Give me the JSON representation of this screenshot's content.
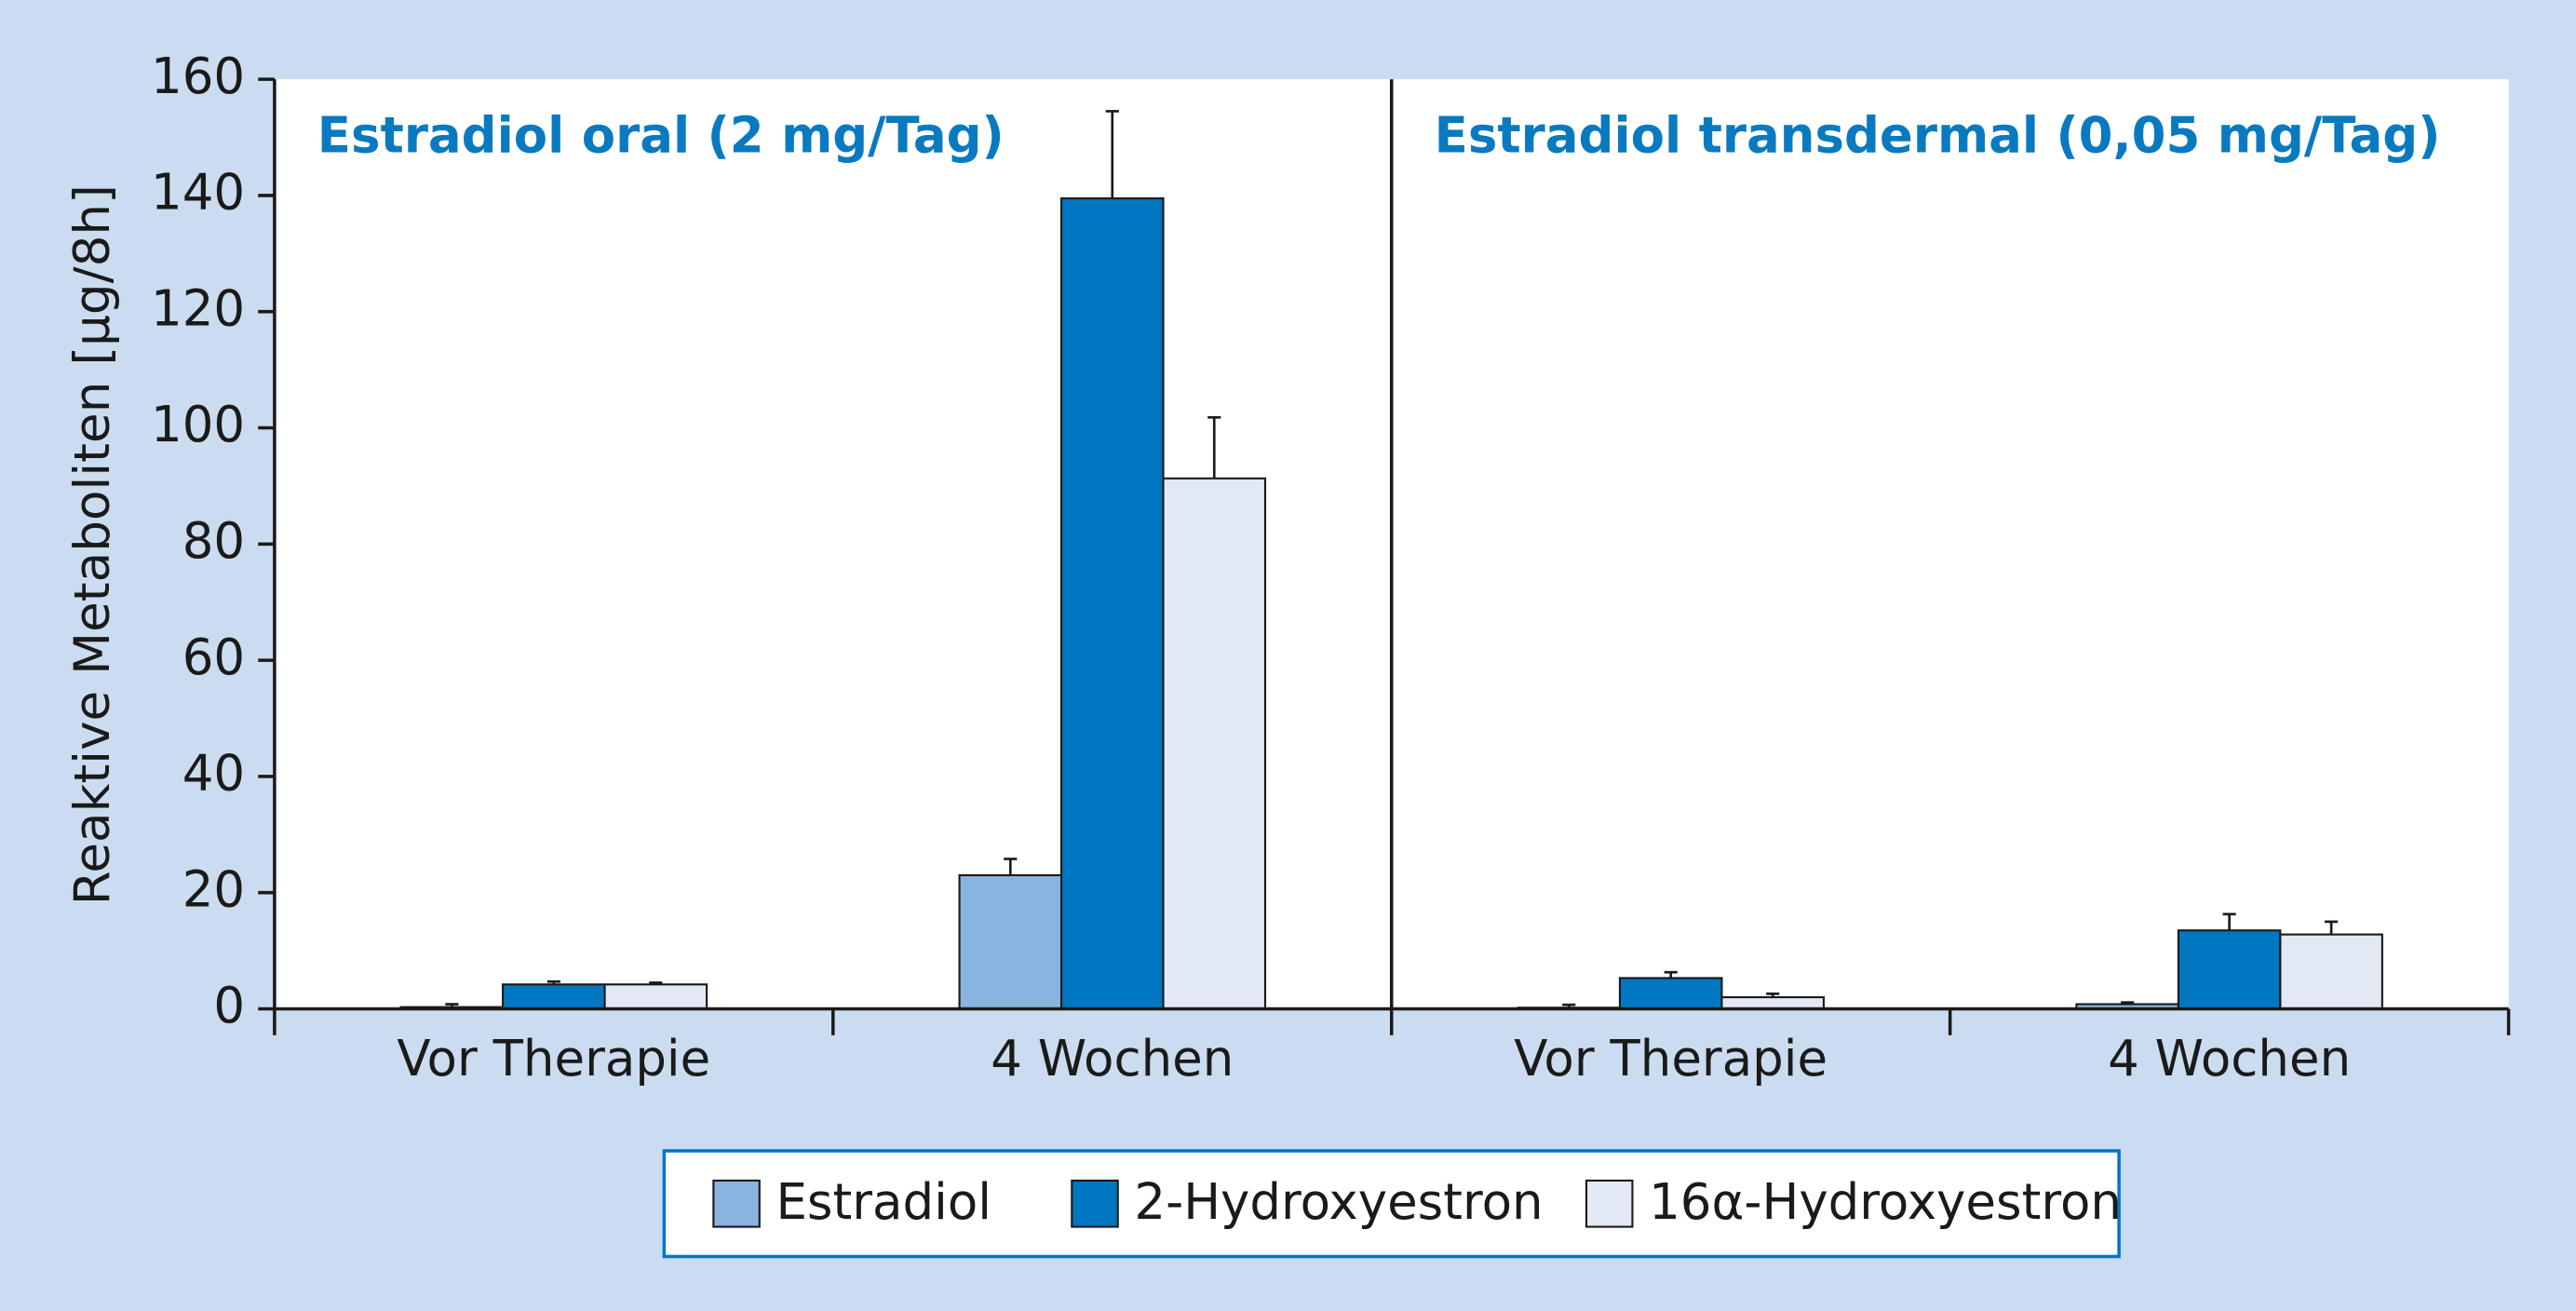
{
  "chart_data": {
    "type": "bar",
    "annotations": [
      "Estradiol oral (2 mg/Tag)",
      "Estradiol transdermal (0,05 mg/Tag)"
    ],
    "y_label": "Reaktive Metaboliten [µg/8h]",
    "categories": [
      "Vor Therapie",
      "4 Wochen",
      "Vor Therapie",
      "4 Wochen"
    ],
    "series": [
      {
        "name": "Estradiol",
        "color": "#8ab4e0",
        "values": [
          0.3,
          23,
          0.2,
          0.8
        ],
        "errors": [
          0.5,
          2.8,
          0.5,
          0.3
        ]
      },
      {
        "name": "2-Hydroxyestron",
        "color": "#0077c0",
        "values": [
          4.2,
          139.5,
          5.3,
          13.5
        ],
        "errors": [
          0.5,
          15,
          1,
          2.8
        ]
      },
      {
        "name": "16α-Hydroxyestron",
        "color": "#e2e9f5",
        "values": [
          4.2,
          91.3,
          2,
          12.8
        ],
        "errors": [
          0.3,
          10.5,
          0.6,
          2.2
        ]
      }
    ],
    "ylim": [
      0,
      160
    ],
    "yticks": [
      0,
      20,
      40,
      60,
      80,
      100,
      120,
      140,
      160
    ]
  }
}
